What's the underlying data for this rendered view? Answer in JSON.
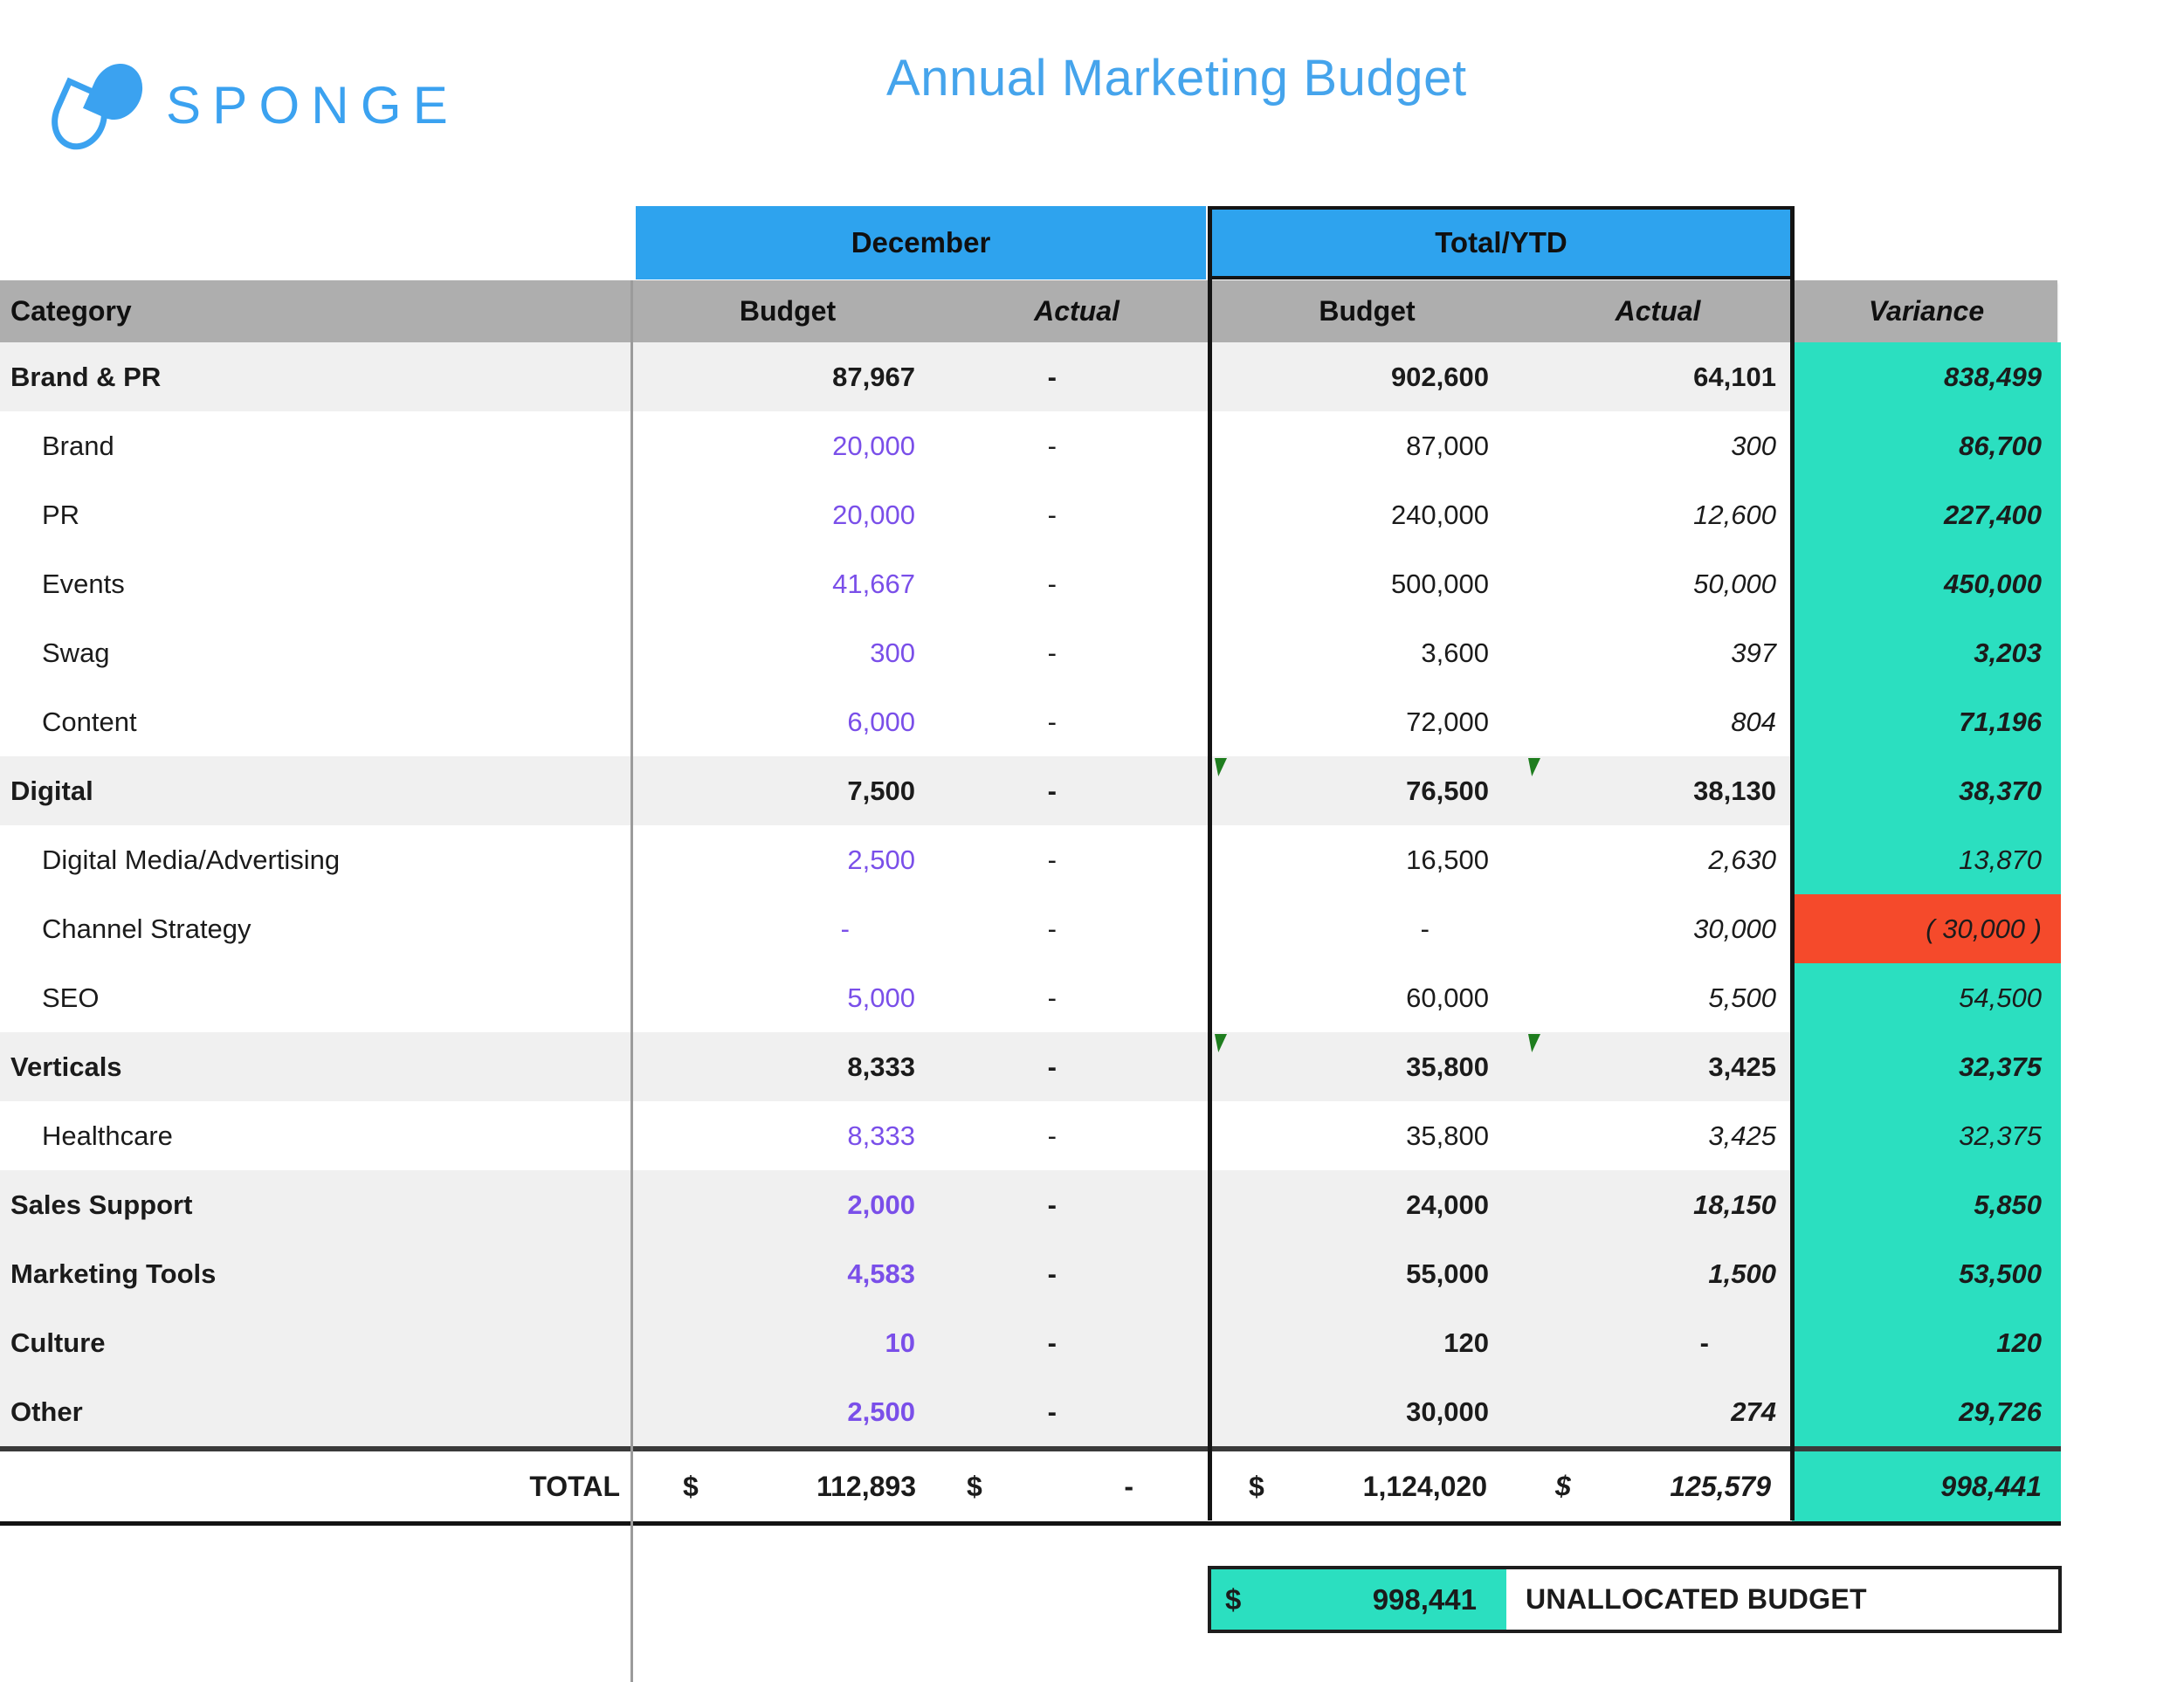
{
  "logo": {
    "text": "SPONGE"
  },
  "title": "Annual Marketing Budget",
  "colors": {
    "header_blue": "#2ea3ee",
    "brand_blue": "#3ba2f0",
    "header_gray": "#aeaeae",
    "row_shade": "#f0f0f0",
    "variance_teal": "#2bdfc0",
    "variance_red": "#f54a2b",
    "budget_purple": "#7a4fe9",
    "flag_green": "#1e7d1e"
  },
  "table": {
    "groups": {
      "december": "December",
      "total_ytd": "Total/YTD"
    },
    "headers": {
      "category": "Category",
      "budget": "Budget",
      "actual": "Actual",
      "variance": "Variance"
    },
    "rows": [
      {
        "label": "Brand & PR",
        "indent": false,
        "shade": true,
        "label_style": "bold",
        "dec_budget": "87,967",
        "dec_budget_style": "bold",
        "dec_actual": "-",
        "dec_actual_style": "bold",
        "ytd_budget": "902,600",
        "ytd_budget_style": "bold",
        "ytd_actual": "64,101",
        "ytd_actual_style": "bold",
        "variance": "838,499",
        "variance_style": "bold",
        "variance_bg": "teal",
        "flags": false
      },
      {
        "label": "Brand",
        "indent": true,
        "shade": false,
        "label_style": "regular",
        "dec_budget": "20,000",
        "dec_budget_style": "purple",
        "dec_actual": "-",
        "dec_actual_style": "regular",
        "ytd_budget": "87,000",
        "ytd_budget_style": "regular",
        "ytd_actual": "300",
        "ytd_actual_style": "italic",
        "variance": "86,700",
        "variance_style": "bold",
        "variance_bg": "teal",
        "flags": false
      },
      {
        "label": "PR",
        "indent": true,
        "shade": false,
        "label_style": "regular",
        "dec_budget": "20,000",
        "dec_budget_style": "purple",
        "dec_actual": "-",
        "dec_actual_style": "regular",
        "ytd_budget": "240,000",
        "ytd_budget_style": "regular",
        "ytd_actual": "12,600",
        "ytd_actual_style": "italic",
        "variance": "227,400",
        "variance_style": "bold",
        "variance_bg": "teal",
        "flags": false
      },
      {
        "label": "Events",
        "indent": true,
        "shade": false,
        "label_style": "regular",
        "dec_budget": "41,667",
        "dec_budget_style": "purple",
        "dec_actual": "-",
        "dec_actual_style": "regular",
        "ytd_budget": "500,000",
        "ytd_budget_style": "regular",
        "ytd_actual": "50,000",
        "ytd_actual_style": "italic",
        "variance": "450,000",
        "variance_style": "bold",
        "variance_bg": "teal",
        "flags": false
      },
      {
        "label": "Swag",
        "indent": true,
        "shade": false,
        "label_style": "regular",
        "dec_budget": "300",
        "dec_budget_style": "purple",
        "dec_actual": "-",
        "dec_actual_style": "regular",
        "ytd_budget": "3,600",
        "ytd_budget_style": "regular",
        "ytd_actual": "397",
        "ytd_actual_style": "italic",
        "variance": "3,203",
        "variance_style": "bold",
        "variance_bg": "teal",
        "flags": false
      },
      {
        "label": "Content",
        "indent": true,
        "shade": false,
        "label_style": "regular",
        "dec_budget": "6,000",
        "dec_budget_style": "purple",
        "dec_actual": "-",
        "dec_actual_style": "regular",
        "ytd_budget": "72,000",
        "ytd_budget_style": "regular",
        "ytd_actual": "804",
        "ytd_actual_style": "italic",
        "variance": "71,196",
        "variance_style": "bold",
        "variance_bg": "teal",
        "flags": false
      },
      {
        "label": "Digital",
        "indent": false,
        "shade": true,
        "label_style": "bold",
        "dec_budget": "7,500",
        "dec_budget_style": "bold",
        "dec_actual": "-",
        "dec_actual_style": "bold",
        "ytd_budget": "76,500",
        "ytd_budget_style": "bold",
        "ytd_actual": "38,130",
        "ytd_actual_style": "bold",
        "variance": "38,370",
        "variance_style": "bold",
        "variance_bg": "teal",
        "flags": true
      },
      {
        "label": "Digital Media/Advertising",
        "indent": true,
        "shade": false,
        "label_style": "regular",
        "dec_budget": "2,500",
        "dec_budget_style": "purple",
        "dec_actual": "-",
        "dec_actual_style": "regular",
        "ytd_budget": "16,500",
        "ytd_budget_style": "regular",
        "ytd_actual": "2,630",
        "ytd_actual_style": "italic",
        "variance": "13,870",
        "variance_style": "regular",
        "variance_bg": "teal",
        "flags": false
      },
      {
        "label": "Channel Strategy",
        "indent": true,
        "shade": false,
        "label_style": "regular",
        "dec_budget": "-",
        "dec_budget_style": "purple",
        "dec_actual": "-",
        "dec_actual_style": "regular",
        "ytd_budget": "-",
        "ytd_budget_style": "regular",
        "ytd_actual": "30,000",
        "ytd_actual_style": "italic",
        "variance": "( 30,000 )",
        "variance_style": "regular",
        "variance_bg": "red",
        "flags": false
      },
      {
        "label": "SEO",
        "indent": true,
        "shade": false,
        "label_style": "regular",
        "dec_budget": "5,000",
        "dec_budget_style": "purple",
        "dec_actual": "-",
        "dec_actual_style": "regular",
        "ytd_budget": "60,000",
        "ytd_budget_style": "regular",
        "ytd_actual": "5,500",
        "ytd_actual_style": "italic",
        "variance": "54,500",
        "variance_style": "regular",
        "variance_bg": "teal",
        "flags": false
      },
      {
        "label": "Verticals",
        "indent": false,
        "shade": true,
        "label_style": "bold",
        "dec_budget": "8,333",
        "dec_budget_style": "bold",
        "dec_actual": "-",
        "dec_actual_style": "bold",
        "ytd_budget": "35,800",
        "ytd_budget_style": "bold",
        "ytd_actual": "3,425",
        "ytd_actual_style": "bold",
        "variance": "32,375",
        "variance_style": "bold",
        "variance_bg": "teal",
        "flags": true
      },
      {
        "label": "Healthcare",
        "indent": true,
        "shade": false,
        "label_style": "regular",
        "dec_budget": "8,333",
        "dec_budget_style": "purple",
        "dec_actual": "-",
        "dec_actual_style": "regular",
        "ytd_budget": "35,800",
        "ytd_budget_style": "regular",
        "ytd_actual": "3,425",
        "ytd_actual_style": "italic",
        "variance": "32,375",
        "variance_style": "regular",
        "variance_bg": "teal",
        "flags": false
      },
      {
        "label": "Sales Support",
        "indent": false,
        "shade": true,
        "label_style": "bold",
        "dec_budget": "2,000",
        "dec_budget_style": "purple-bold",
        "dec_actual": "-",
        "dec_actual_style": "bold",
        "ytd_budget": "24,000",
        "ytd_budget_style": "bold",
        "ytd_actual": "18,150",
        "ytd_actual_style": "bold-italic",
        "variance": "5,850",
        "variance_style": "bold",
        "variance_bg": "teal",
        "flags": false
      },
      {
        "label": "Marketing Tools",
        "indent": false,
        "shade": true,
        "label_style": "bold",
        "dec_budget": "4,583",
        "dec_budget_style": "purple-bold",
        "dec_actual": "-",
        "dec_actual_style": "bold",
        "ytd_budget": "55,000",
        "ytd_budget_style": "bold",
        "ytd_actual": "1,500",
        "ytd_actual_style": "bold-italic",
        "variance": "53,500",
        "variance_style": "bold",
        "variance_bg": "teal",
        "flags": false
      },
      {
        "label": "Culture",
        "indent": false,
        "shade": true,
        "label_style": "bold",
        "dec_budget": "10",
        "dec_budget_style": "purple-bold",
        "dec_actual": "-",
        "dec_actual_style": "bold",
        "ytd_budget": "120",
        "ytd_budget_style": "bold",
        "ytd_actual": "-",
        "ytd_actual_style": "bold",
        "variance": "120",
        "variance_style": "bold",
        "variance_bg": "teal",
        "flags": false
      },
      {
        "label": "Other",
        "indent": false,
        "shade": true,
        "label_style": "bold",
        "dec_budget": "2,500",
        "dec_budget_style": "purple-bold",
        "dec_actual": "-",
        "dec_actual_style": "bold",
        "ytd_budget": "30,000",
        "ytd_budget_style": "bold",
        "ytd_actual": "274",
        "ytd_actual_style": "bold-italic",
        "variance": "29,726",
        "variance_style": "bold",
        "variance_bg": "teal",
        "flags": false
      }
    ],
    "total": {
      "label": "TOTAL",
      "dec_budget_cur": "$",
      "dec_budget": "112,893",
      "dec_actual_cur": "$",
      "dec_actual": "-",
      "ytd_budget_cur": "$",
      "ytd_budget": "1,124,020",
      "ytd_actual_cur": "$",
      "ytd_actual": "125,579",
      "variance": "998,441"
    }
  },
  "footer": {
    "currency": "$",
    "amount": "998,441",
    "label": "UNALLOCATED BUDGET"
  }
}
